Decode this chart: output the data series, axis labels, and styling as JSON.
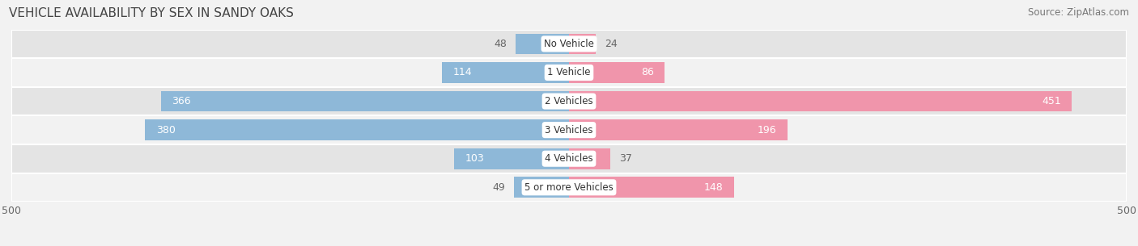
{
  "title": "VEHICLE AVAILABILITY BY SEX IN SANDY OAKS",
  "source": "Source: ZipAtlas.com",
  "categories": [
    "No Vehicle",
    "1 Vehicle",
    "2 Vehicles",
    "3 Vehicles",
    "4 Vehicles",
    "5 or more Vehicles"
  ],
  "male_values": [
    48,
    114,
    366,
    380,
    103,
    49
  ],
  "female_values": [
    24,
    86,
    451,
    196,
    37,
    148
  ],
  "male_color": "#8eb8d8",
  "female_color": "#f095ab",
  "label_color_small": "#666666",
  "label_color_large": "#ffffff",
  "bar_height": 0.72,
  "xlim": 500,
  "background_color": "#f2f2f2",
  "row_colors": [
    "#e4e4e4",
    "#f2f2f2"
  ],
  "title_fontsize": 11,
  "source_fontsize": 8.5,
  "label_fontsize": 9,
  "tick_fontsize": 9,
  "legend_fontsize": 9,
  "category_fontsize": 8.5,
  "large_threshold": 80
}
